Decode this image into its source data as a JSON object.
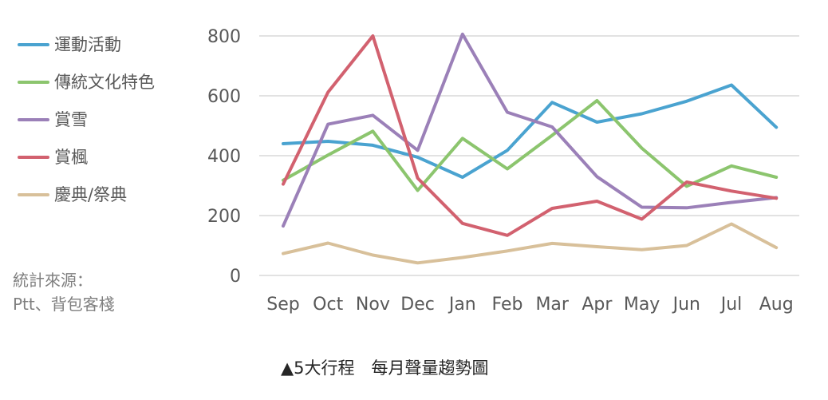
{
  "chart_data": {
    "type": "line",
    "categories": [
      "Sep",
      "Oct",
      "Nov",
      "Dec",
      "Jan",
      "Feb",
      "Mar",
      "Apr",
      "May",
      "Jun",
      "Jul",
      "Aug"
    ],
    "ylim": [
      0,
      800
    ],
    "yticks": [
      "0",
      "200",
      "400",
      "600",
      "800"
    ],
    "grid": true,
    "legend_position": "left",
    "series": [
      {
        "name": "運動活動",
        "color": "#4aa3d0",
        "values": [
          440,
          448,
          435,
          395,
          328,
          418,
          578,
          512,
          540,
          582,
          636,
          495
        ]
      },
      {
        "name": "傳統文化特色",
        "color": "#8cc56e",
        "values": [
          318,
          402,
          482,
          284,
          458,
          356,
          468,
          584,
          425,
          298,
          366,
          328
        ]
      },
      {
        "name": "賞雪",
        "color": "#9b80b8",
        "values": [
          165,
          505,
          535,
          418,
          806,
          545,
          496,
          330,
          228,
          226,
          244,
          260
        ]
      },
      {
        "name": "賞楓",
        "color": "#d2616f",
        "values": [
          305,
          612,
          800,
          325,
          174,
          134,
          224,
          248,
          188,
          312,
          282,
          258
        ]
      },
      {
        "name": "慶典/祭典",
        "color": "#d8c09a",
        "values": [
          73,
          108,
          68,
          42,
          60,
          82,
          107,
          96,
          86,
          100,
          172,
          93
        ]
      }
    ]
  },
  "source": {
    "line1": "統計來源：",
    "line2": "Ptt、背包客棧"
  },
  "caption": "▲5大行程　每月聲量趨勢圖"
}
